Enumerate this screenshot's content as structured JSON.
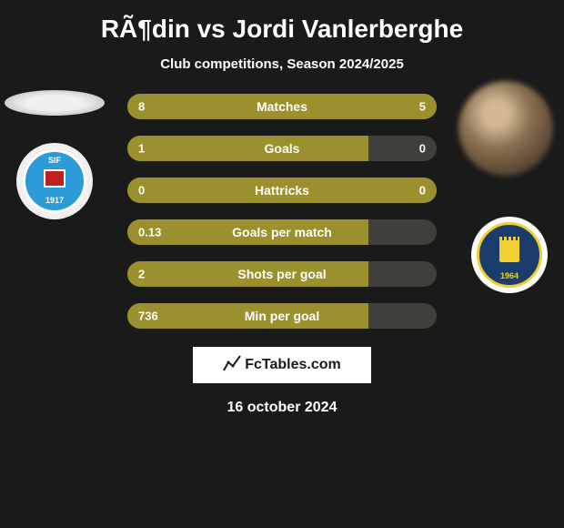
{
  "title": "RÃ¶din vs Jordi Vanlerberghe",
  "subtitle": "Club competitions, Season 2024/2025",
  "date": "16 october 2024",
  "footer": {
    "icon": "📊",
    "text": "FcTables.com"
  },
  "colors": {
    "bar_primary": "#9a912e",
    "bar_neutral": "#403f3a",
    "background": "#1a1a1a",
    "text": "#ffffff"
  },
  "club_left": {
    "name": "SIF",
    "year": "1917",
    "bg_color": "#2d9bd8"
  },
  "club_right": {
    "year": "1964",
    "bg_color": "#1a3d6b",
    "accent": "#f0d030"
  },
  "stats": [
    {
      "label": "Matches",
      "left_value": "8",
      "right_value": "5",
      "left_pct": 61,
      "right_pct": 39,
      "left_color": "#9a912e",
      "right_color": "#9a912e"
    },
    {
      "label": "Goals",
      "left_value": "1",
      "right_value": "0",
      "left_pct": 78,
      "right_pct": 0,
      "left_color": "#9a912e",
      "right_color": "#403f3a"
    },
    {
      "label": "Hattricks",
      "left_value": "0",
      "right_value": "0",
      "left_pct": 50,
      "right_pct": 50,
      "left_color": "#9a912e",
      "right_color": "#9a912e"
    },
    {
      "label": "Goals per match",
      "left_value": "0.13",
      "right_value": "",
      "left_pct": 78,
      "right_pct": 0,
      "left_color": "#9a912e",
      "right_color": "#403f3a"
    },
    {
      "label": "Shots per goal",
      "left_value": "2",
      "right_value": "",
      "left_pct": 78,
      "right_pct": 0,
      "left_color": "#9a912e",
      "right_color": "#403f3a"
    },
    {
      "label": "Min per goal",
      "left_value": "736",
      "right_value": "",
      "left_pct": 78,
      "right_pct": 0,
      "left_color": "#9a912e",
      "right_color": "#403f3a"
    }
  ]
}
